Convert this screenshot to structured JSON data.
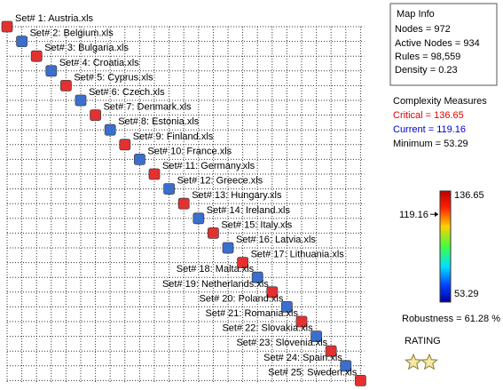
{
  "nodes": [
    {
      "label": "Set# 1: Austria.xls",
      "color": "#e53030"
    },
    {
      "label": "Set# 2: Belgium.xls",
      "color": "#3a6fd0"
    },
    {
      "label": "Set# 3: Bulgaria.xls",
      "color": "#e53030"
    },
    {
      "label": "Set# 4: Croatia.xls",
      "color": "#3a6fd0"
    },
    {
      "label": "Set# 5: Cyprus.xls",
      "color": "#e53030"
    },
    {
      "label": "Set# 6: Czech.xls",
      "color": "#3a6fd0"
    },
    {
      "label": "Set# 7: Denmark.xls",
      "color": "#e53030"
    },
    {
      "label": "Set# 8: Estonia.xls",
      "color": "#3a6fd0"
    },
    {
      "label": "Set# 9: Finland.xls",
      "color": "#e53030"
    },
    {
      "label": "Set# 10: France.xls",
      "color": "#3a6fd0"
    },
    {
      "label": "Set# 11: Germany.xls",
      "color": "#e53030"
    },
    {
      "label": "Set# 12: Greece.xls",
      "color": "#3a6fd0"
    },
    {
      "label": "Set# 13: Hungary.xls",
      "color": "#e53030"
    },
    {
      "label": "Set# 14: Ireland.xls",
      "color": "#3a6fd0"
    },
    {
      "label": "Set# 15: Italy.xls",
      "color": "#e53030"
    },
    {
      "label": "Set# 16: Latvia.xls",
      "color": "#3a6fd0"
    },
    {
      "label": "Set# 17: Lithuania.xls",
      "color": "#e53030"
    },
    {
      "label": "Set# 18: Malta.xls",
      "color": "#3a6fd0"
    },
    {
      "label": "Set# 19: Netherlands.xls",
      "color": "#e53030"
    },
    {
      "label": "Set# 20: Poland.xls",
      "color": "#3a6fd0"
    },
    {
      "label": "Set# 21: Romania.xls",
      "color": "#e53030"
    },
    {
      "label": "Set# 22: Slovakia.xls",
      "color": "#3a6fd0"
    },
    {
      "label": "Set# 23: Slovenia.xls",
      "color": "#e53030"
    },
    {
      "label": "Set# 24: Spain.xls",
      "color": "#3a6fd0"
    },
    {
      "label": "Set# 25: Sweden.xls",
      "color": "#e53030"
    }
  ],
  "map_info": {
    "title": "Map Info",
    "lines": [
      "Nodes = 972",
      "Active Nodes = 934",
      "Rules = 98,559",
      "Density = 0.23"
    ]
  },
  "complexity": {
    "title": "Complexity Measures",
    "critical": "Critical = 136.65",
    "current": "Current = 119.16",
    "minimum": "Minimum = 53.29"
  },
  "colorbar": {
    "max": 136.65,
    "min": 53.29,
    "current": 119.16
  },
  "robustness": "Robustness = 61.28 %",
  "rating": {
    "title": "RATING",
    "stars": 2
  }
}
